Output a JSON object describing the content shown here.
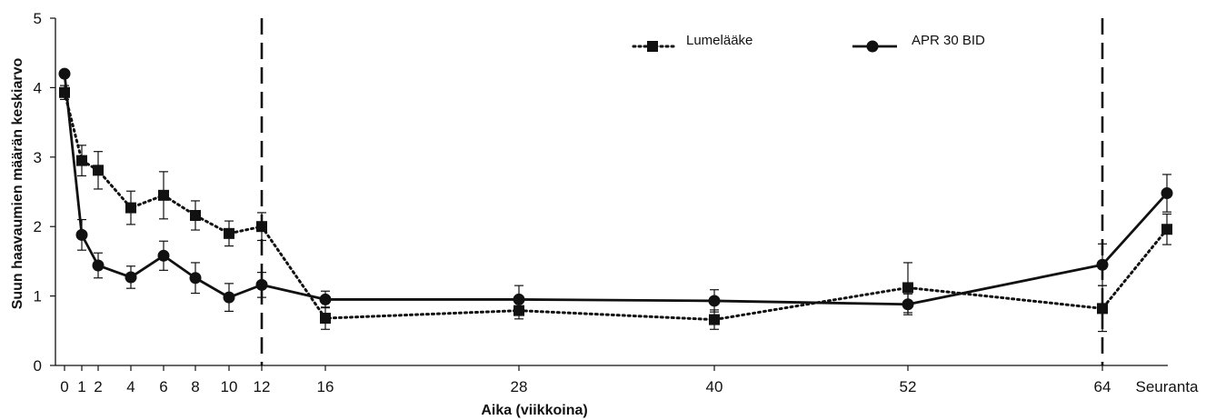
{
  "chart_data": {
    "type": "line",
    "xlabel": "Aika (viikkoina)",
    "ylabel": "Suun haavaumien määrän keskiarvo",
    "ylim": [
      0,
      5
    ],
    "yticks": [
      0,
      1,
      2,
      3,
      4,
      5
    ],
    "x_tick_labels": [
      "0",
      "1",
      "2",
      "4",
      "6",
      "8",
      "10",
      "12",
      "16",
      "28",
      "40",
      "52",
      "64",
      "Seuranta"
    ],
    "vertical_dashed_lines_at": [
      "12",
      "64"
    ],
    "grid": false,
    "legend_position": "top-right",
    "series": [
      {
        "name": "Lumelääke",
        "marker": "square",
        "line_style": "dotted",
        "color": "#111111",
        "points": [
          {
            "x": "0",
            "y": 3.93,
            "err": 0.1
          },
          {
            "x": "1",
            "y": 2.95,
            "err": 0.22
          },
          {
            "x": "2",
            "y": 2.81,
            "err": 0.27
          },
          {
            "x": "4",
            "y": 2.27,
            "err": 0.24
          },
          {
            "x": "6",
            "y": 2.45,
            "err": 0.34
          },
          {
            "x": "8",
            "y": 2.16,
            "err": 0.21
          },
          {
            "x": "10",
            "y": 1.9,
            "err": 0.18
          },
          {
            "x": "12",
            "y": 2.0,
            "err": 0.2
          },
          {
            "x": "16",
            "y": 0.68,
            "err": 0.16
          },
          {
            "x": "28",
            "y": 0.79,
            "err": 0.12
          },
          {
            "x": "40",
            "y": 0.66,
            "err": 0.14
          },
          {
            "x": "52",
            "y": 1.12,
            "err": 0.36
          },
          {
            "x": "64",
            "y": 0.82,
            "err": 0.33
          },
          {
            "x": "Seuranta",
            "y": 1.96,
            "err": 0.22
          }
        ]
      },
      {
        "name": "APR 30 BID",
        "marker": "circle",
        "line_style": "solid",
        "color": "#111111",
        "points": [
          {
            "x": "0",
            "y": 4.2,
            "err": 0.0
          },
          {
            "x": "1",
            "y": 1.88,
            "err": 0.22
          },
          {
            "x": "2",
            "y": 1.44,
            "err": 0.18
          },
          {
            "x": "4",
            "y": 1.27,
            "err": 0.16
          },
          {
            "x": "6",
            "y": 1.58,
            "err": 0.21
          },
          {
            "x": "8",
            "y": 1.26,
            "err": 0.22
          },
          {
            "x": "10",
            "y": 0.98,
            "err": 0.2
          },
          {
            "x": "12",
            "y": 1.16,
            "err": 0.18
          },
          {
            "x": "16",
            "y": 0.95,
            "err": 0.12
          },
          {
            "x": "28",
            "y": 0.95,
            "err": 0.2
          },
          {
            "x": "40",
            "y": 0.93,
            "err": 0.16
          },
          {
            "x": "52",
            "y": 0.88,
            "err": 0.15
          },
          {
            "x": "64",
            "y": 1.45,
            "err": 0.3
          },
          {
            "x": "Seuranta",
            "y": 2.48,
            "err": 0.27
          }
        ]
      }
    ]
  }
}
